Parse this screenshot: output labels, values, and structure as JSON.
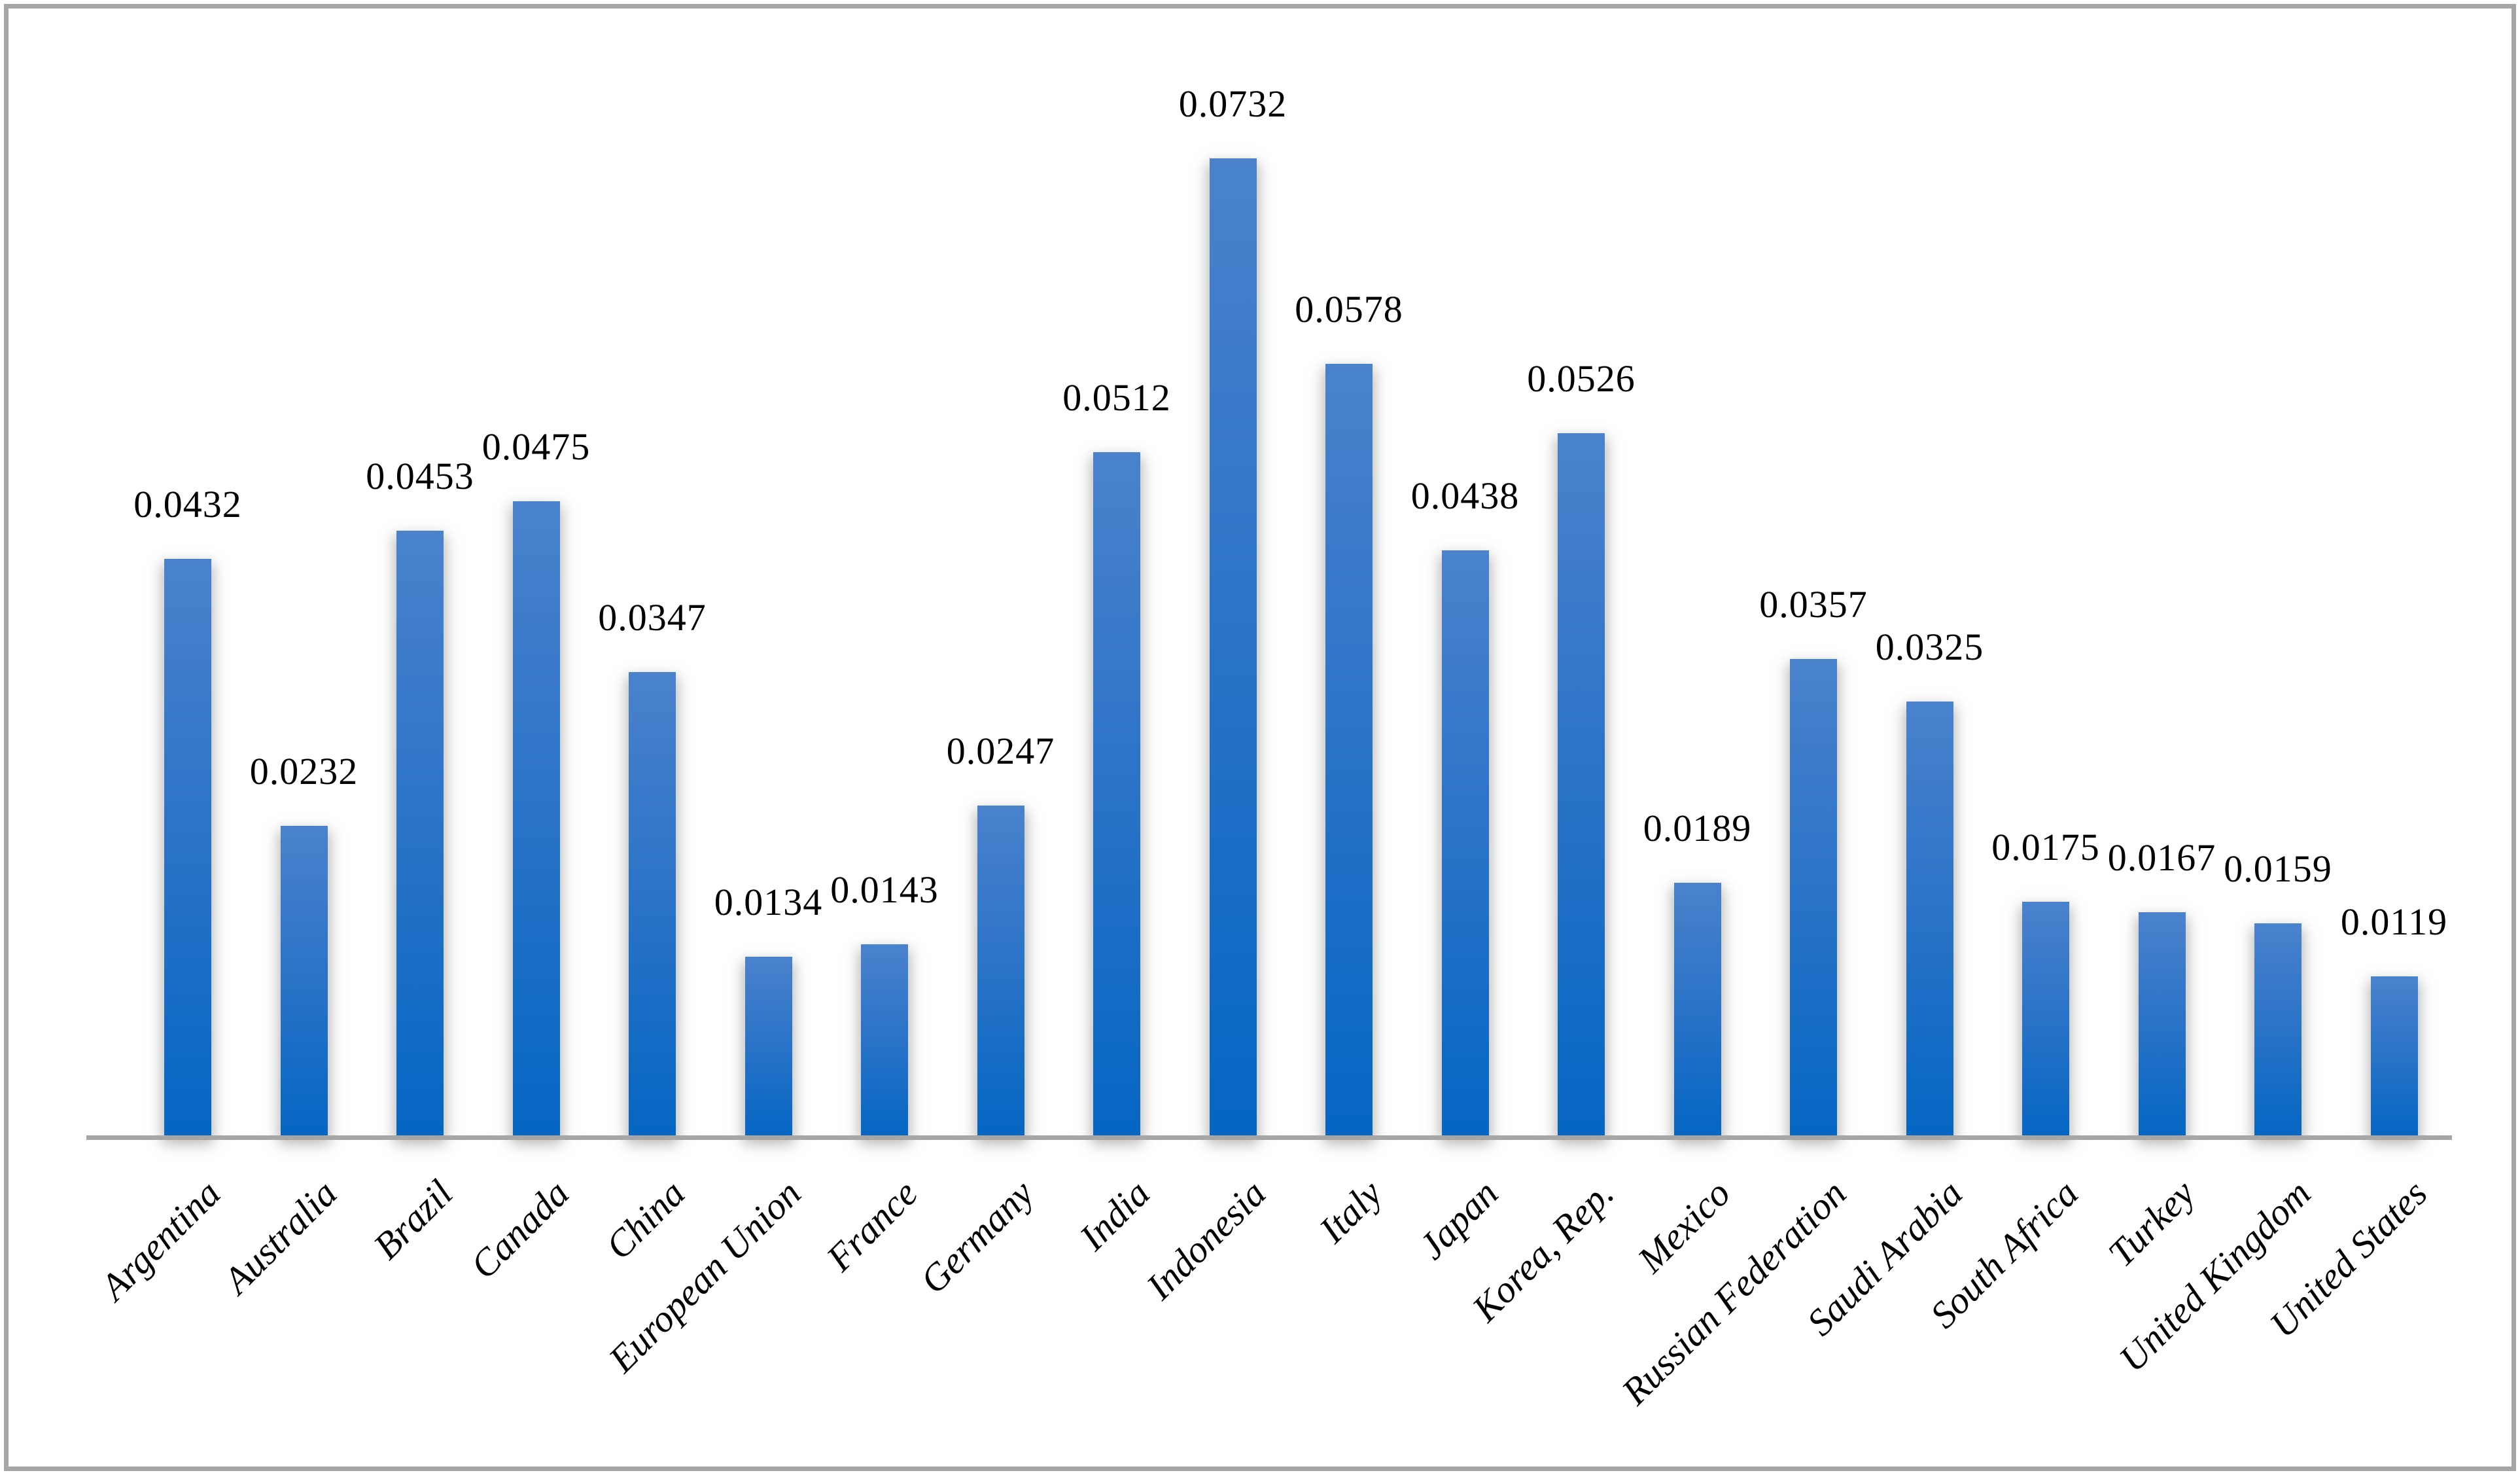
{
  "chart_data": {
    "type": "bar",
    "title": "",
    "xlabel": "",
    "ylabel": "",
    "categories": [
      "Argentina",
      "Australia",
      "Brazil",
      "Canada",
      "China",
      "European Union",
      "France",
      "Germany",
      "India",
      "Indonesia",
      "Italy",
      "Japan",
      "Korea, Rep.",
      "Mexico",
      "Russian Federation",
      "Saudi Arabia",
      "South Africa",
      "Turkey",
      "United Kingdom",
      "United States"
    ],
    "values": [
      0.0432,
      0.0232,
      0.0453,
      0.0475,
      0.0347,
      0.0134,
      0.0143,
      0.0247,
      0.0512,
      0.0732,
      0.0578,
      0.0438,
      0.0526,
      0.0189,
      0.0357,
      0.0325,
      0.0175,
      0.0167,
      0.0159,
      0.0119
    ],
    "data_labels": [
      "0.0432",
      "0.0232",
      "0.0453",
      "0.0475",
      "0.0347",
      "0.0134",
      "0.0143",
      "0.0247",
      "0.0512",
      "0.0732",
      "0.0578",
      "0.0438",
      "0.0526",
      "0.0189",
      "0.0357",
      "0.0325",
      "0.0175",
      "0.0167",
      "0.0159",
      "0.0119"
    ],
    "ylim": [
      0,
      0.08
    ],
    "grid": false,
    "legend": false,
    "value_axis_visible": false,
    "category_label_rotation_deg": -45,
    "colors": {
      "bar_gradient_top": "#4a82cc",
      "bar_gradient_mid": "#2d74c8",
      "bar_gradient_bottom": "#0566c3",
      "axis_line": "#a6a6a6",
      "frame_border": "#a6a6a6",
      "label_text": "#000000"
    }
  }
}
